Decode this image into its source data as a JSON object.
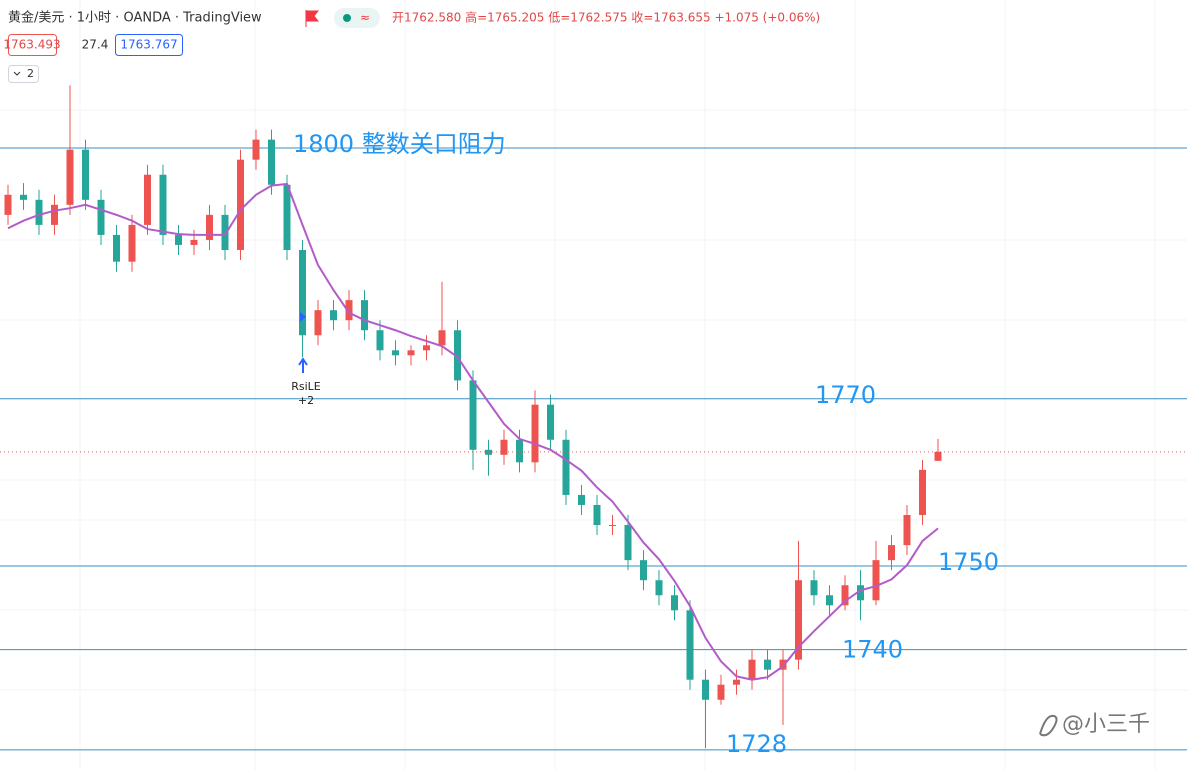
{
  "chart_data": {
    "type": "candlestick",
    "header": {
      "symbol": "黄金/美元 · 1小时 · OANDA · TradingView",
      "ohlc": "开1762.580 高=1765.205 低=1762.575 收=1763.655 +1.075 (+0.06%)",
      "bid": "1763.493",
      "spread": "27.4",
      "ask": "1763.767",
      "collapse": "2"
    },
    "ylim": [
      1725.6,
      1817.7
    ],
    "up_color": "#ef5350",
    "down_color": "#26a69a",
    "ma_color": "#b35cc9",
    "level_color": "#3a8fc4",
    "level_text_color": "#2196f3",
    "candles": {
      "open": [
        1792.0,
        1794.4,
        1793.8,
        1790.8,
        1793.2,
        1799.8,
        1793.8,
        1789.6,
        1786.4,
        1790.8,
        1796.8,
        1789.6,
        1788.4,
        1789.0,
        1792.0,
        1787.8,
        1798.6,
        1801.0,
        1795.6,
        1787.8,
        1777.6,
        1780.6,
        1779.4,
        1781.8,
        1778.2,
        1775.8,
        1775.2,
        1775.8,
        1776.4,
        1778.2,
        1772.2,
        1763.9,
        1763.3,
        1765.1,
        1762.4,
        1769.3,
        1765.1,
        1758.5,
        1757.3,
        1754.9,
        1754.9,
        1750.7,
        1748.3,
        1746.5,
        1744.7,
        1736.4,
        1734.0,
        1735.8,
        1736.4,
        1738.8,
        1737.6,
        1738.8,
        1748.3,
        1746.5,
        1745.3,
        1747.7,
        1745.9,
        1750.7,
        1752.5,
        1756.1,
        1762.58
      ],
      "high": [
        1795.6,
        1795.8,
        1795.0,
        1794.4,
        1807.5,
        1801.0,
        1795.0,
        1790.8,
        1792.0,
        1798.0,
        1798.0,
        1790.8,
        1790.2,
        1793.2,
        1793.2,
        1799.8,
        1802.2,
        1802.2,
        1796.8,
        1789.0,
        1781.8,
        1781.8,
        1783.0,
        1783.0,
        1779.4,
        1777.0,
        1776.4,
        1777.6,
        1784.0,
        1779.4,
        1773.4,
        1765.1,
        1766.3,
        1766.3,
        1771.0,
        1770.5,
        1766.3,
        1759.7,
        1758.5,
        1756.1,
        1756.1,
        1751.9,
        1749.5,
        1747.7,
        1745.9,
        1737.6,
        1737.0,
        1737.6,
        1740.0,
        1740.0,
        1740.0,
        1753.0,
        1749.5,
        1747.7,
        1748.9,
        1749.5,
        1753.0,
        1753.7,
        1757.3,
        1762.7,
        1765.205
      ],
      "low": [
        1790.8,
        1792.6,
        1789.6,
        1789.6,
        1792.0,
        1792.6,
        1788.4,
        1785.2,
        1785.2,
        1789.6,
        1788.4,
        1787.2,
        1787.2,
        1787.8,
        1786.6,
        1786.6,
        1797.4,
        1794.4,
        1786.6,
        1775.0,
        1776.4,
        1778.2,
        1778.2,
        1777.0,
        1774.6,
        1774.0,
        1774.0,
        1774.6,
        1775.2,
        1771.0,
        1761.5,
        1760.8,
        1762.1,
        1761.2,
        1761.2,
        1763.9,
        1757.3,
        1756.1,
        1753.7,
        1753.7,
        1749.5,
        1747.1,
        1745.3,
        1743.5,
        1735.2,
        1728.2,
        1733.4,
        1734.6,
        1735.2,
        1736.4,
        1731.0,
        1737.6,
        1745.3,
        1744.1,
        1744.7,
        1743.5,
        1745.3,
        1749.5,
        1751.3,
        1754.9,
        1762.575
      ],
      "close": [
        1794.4,
        1793.8,
        1790.8,
        1793.2,
        1799.8,
        1793.8,
        1789.6,
        1786.4,
        1790.8,
        1796.8,
        1789.6,
        1788.4,
        1789.0,
        1792.0,
        1787.8,
        1798.6,
        1801.0,
        1795.6,
        1787.8,
        1777.6,
        1780.6,
        1779.4,
        1781.8,
        1778.2,
        1775.8,
        1775.2,
        1775.8,
        1776.4,
        1778.2,
        1772.2,
        1763.9,
        1763.3,
        1765.1,
        1762.4,
        1769.3,
        1765.1,
        1758.5,
        1757.3,
        1754.9,
        1754.9,
        1750.7,
        1748.3,
        1746.5,
        1744.7,
        1736.4,
        1734.0,
        1735.8,
        1736.4,
        1738.8,
        1737.6,
        1738.8,
        1748.3,
        1746.5,
        1745.3,
        1747.7,
        1745.9,
        1750.7,
        1752.5,
        1756.1,
        1761.5,
        1763.655
      ]
    },
    "ma": [
      1790.4,
      1791.3,
      1792.0,
      1792.5,
      1792.8,
      1793.2,
      1792.6,
      1792.0,
      1791.3,
      1790.3,
      1790.0,
      1789.7,
      1789.6,
      1789.6,
      1789.6,
      1792.6,
      1794.4,
      1795.5,
      1795.7,
      1790.8,
      1786.0,
      1783.0,
      1780.3,
      1779.4,
      1778.8,
      1778.2,
      1777.5,
      1776.9,
      1776.3,
      1775.0,
      1772.2,
      1769.6,
      1767.0,
      1765.2,
      1764.6,
      1763.9,
      1762.7,
      1761.4,
      1759.4,
      1757.7,
      1755.3,
      1752.8,
      1750.8,
      1748.2,
      1745.2,
      1741.4,
      1738.6,
      1736.8,
      1736.4,
      1736.7,
      1738.0,
      1740.3,
      1742.2,
      1744.0,
      1745.8,
      1747.1,
      1747.6,
      1748.4,
      1750.1,
      1753.0,
      1754.5
    ],
    "levels": [
      {
        "value": 1800,
        "label": "1800 整数关口阻力"
      },
      {
        "value": 1770,
        "label": "1770"
      },
      {
        "value": 1750,
        "label": "1750"
      },
      {
        "value": 1740,
        "label": "1740"
      },
      {
        "value": 1728,
        "label": "1728"
      }
    ],
    "signal": {
      "name": "RsiLE",
      "count": "+2"
    },
    "watermark": "@小三千"
  }
}
